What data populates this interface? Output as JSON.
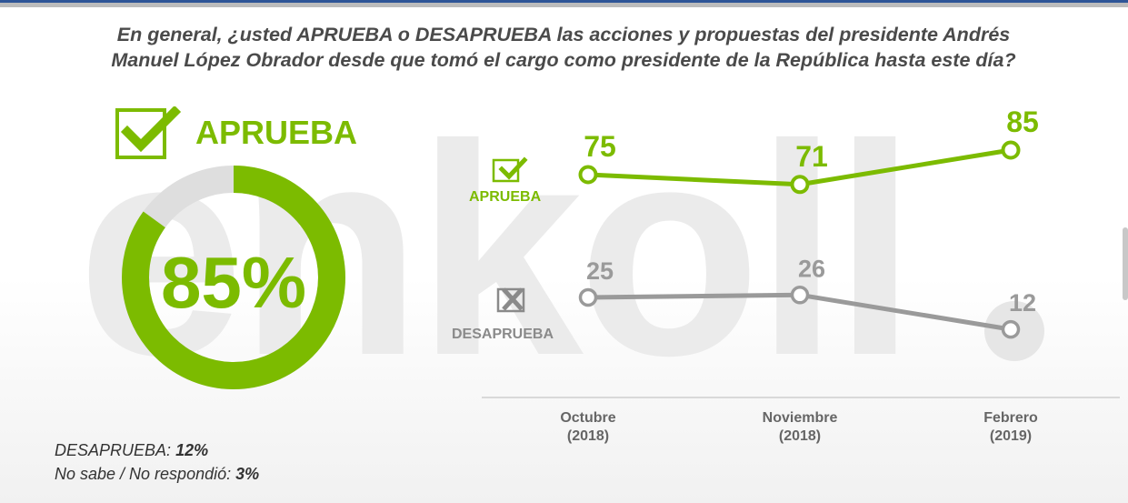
{
  "question": {
    "line1": "En general, ¿usted APRUEBA o DESAPRUEBA las acciones y propuestas del presidente Andrés",
    "line2": "Manuel López Obrador desde que tomó el cargo como presidente de la República hasta este día?"
  },
  "watermark": "enkoll",
  "summary": {
    "approve_label": "APRUEBA",
    "approve_pct_text": "85%",
    "approve_value": 85,
    "disapprove_value": 12,
    "no_answer_value": 3,
    "disapprove_label": "DESAPRUEBA:",
    "disapprove_pct_text": "12%",
    "no_answer_label": "No sabe / No respondió:",
    "no_answer_pct_text": "3%"
  },
  "colors": {
    "approve": "#7cbb00",
    "disapprove": "#9a9a9a",
    "remainder": "#dedede",
    "text": "#4a4a4a"
  },
  "chart_data": {
    "type": "line",
    "categories": [
      {
        "month": "Octubre",
        "year": "(2018)"
      },
      {
        "month": "Noviembre",
        "year": "(2018)"
      },
      {
        "month": "Febrero",
        "year": "(2019)"
      }
    ],
    "series": [
      {
        "name": "APRUEBA",
        "values": [
          75,
          71,
          85
        ]
      },
      {
        "name": "DESAPRUEBA",
        "values": [
          25,
          26,
          12
        ]
      }
    ],
    "title": "",
    "xlabel": "",
    "ylabel": ""
  }
}
